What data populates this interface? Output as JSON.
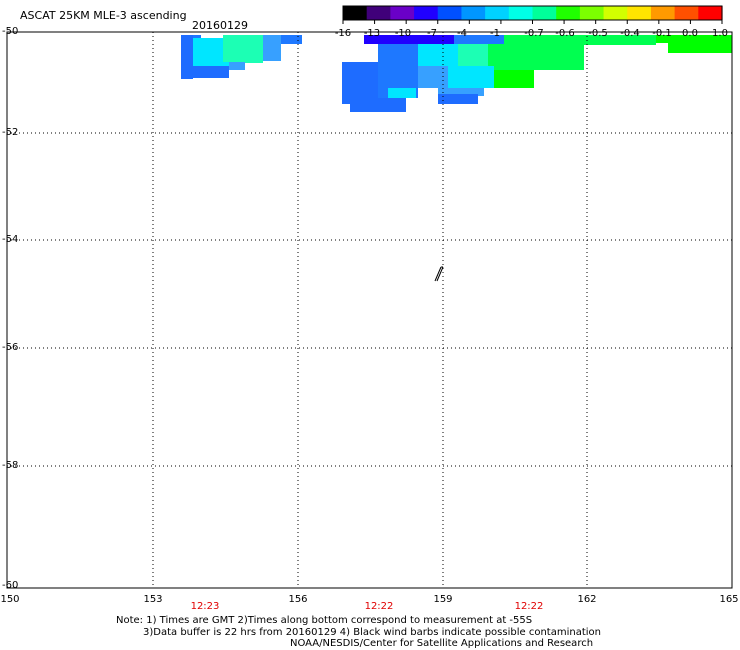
{
  "header": {
    "title": "ASCAT 25KM MLE-3 ascending",
    "date": "20160129"
  },
  "colorbar": {
    "labels": [
      "-16",
      "-13",
      "-10",
      "-7",
      "-4",
      "-1",
      "-0.7",
      "-0.6",
      "-0.5",
      "-0.4",
      "-0.1",
      "0.0",
      "1.0"
    ],
    "colors": [
      "#000000",
      "#40007a",
      "#6a00c8",
      "#2000ff",
      "#0050ff",
      "#0096ff",
      "#00d2ff",
      "#00ffe6",
      "#00ff9a",
      "#20ff00",
      "#7cff00",
      "#d2ff00",
      "#ffe400",
      "#ff9a00",
      "#ff5000",
      "#ff0000"
    ]
  },
  "map": {
    "lat_labels": [
      "-50",
      "-52",
      "-54",
      "-56",
      "-58",
      "-60"
    ],
    "lon_labels": [
      "150",
      "153",
      "156",
      "159",
      "162",
      "165"
    ],
    "time_labels": [
      "12:23",
      "12:22",
      "12:22"
    ]
  },
  "notes": {
    "line1": "Note: 1) Times are GMT 2)Times along bottom correspond to measurement at -55S",
    "line2": "3)Data buffer is 22 hrs from 20160129 4) Black wind barbs indicate possible contamination",
    "line3": "NOAA/NESDIS/Center for Satellite Applications and Research"
  },
  "palette": {
    "blue_dark": "#2a5cff",
    "blue_mid": "#1e78ff",
    "blue_light": "#37a0ff",
    "cyan": "#00e6ff",
    "cyan_light": "#36ffe4",
    "aqua_green": "#1cffb4",
    "green": "#00ff50",
    "green_bright": "#00ff00",
    "indigo": "#2000ff"
  }
}
